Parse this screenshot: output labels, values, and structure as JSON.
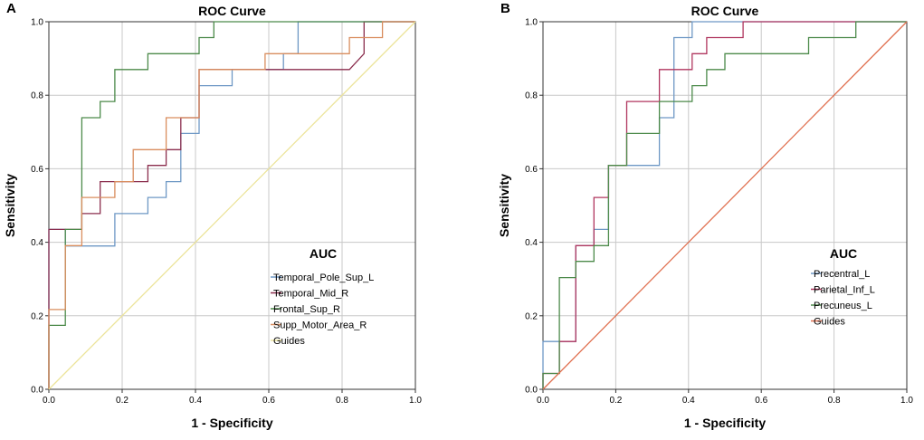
{
  "chart_data": [
    {
      "panel": "A",
      "type": "line",
      "title": "ROC Curve",
      "xlabel": "1 - Specificity",
      "ylabel": "Sensitivity",
      "xlim": [
        0,
        1
      ],
      "ylim": [
        0,
        1
      ],
      "x_ticks": [
        "0.0",
        "0.2",
        "0.4",
        "0.6",
        "0.8",
        "1.0"
      ],
      "y_ticks": [
        "0.0",
        "0.2",
        "0.4",
        "0.6",
        "0.8",
        "1.0"
      ],
      "grid": true,
      "legend_title": "AUC",
      "legend_position": "bottom-right",
      "series": [
        {
          "name": "Temporal_Pole_Sup_L",
          "color": "#6e98c5",
          "x": [
            0,
            0,
            0.045,
            0.045,
            0.18,
            0.18,
            0.27,
            0.27,
            0.32,
            0.32,
            0.36,
            0.36,
            0.41,
            0.41,
            0.41,
            0.5,
            0.5,
            0.64,
            0.64,
            0.68,
            0.68,
            1.0
          ],
          "y": [
            0,
            0.435,
            0.435,
            0.39,
            0.39,
            0.478,
            0.478,
            0.522,
            0.522,
            0.565,
            0.565,
            0.696,
            0.696,
            0.739,
            0.826,
            0.826,
            0.87,
            0.87,
            0.913,
            0.913,
            1.0,
            1.0
          ]
        },
        {
          "name": "Temporal_Mid_R",
          "color": "#8b2e4e",
          "x": [
            0,
            0,
            0.09,
            0.09,
            0.14,
            0.14,
            0.27,
            0.27,
            0.32,
            0.32,
            0.36,
            0.36,
            0.41,
            0.41,
            0.77,
            0.77,
            0.82,
            0.82,
            0.86,
            0.86,
            1.0
          ],
          "y": [
            0,
            0.435,
            0.435,
            0.478,
            0.478,
            0.565,
            0.565,
            0.609,
            0.609,
            0.652,
            0.652,
            0.739,
            0.739,
            0.87,
            0.87,
            0.87,
            0.87,
            0.87,
            0.913,
            1.0,
            1.0
          ]
        },
        {
          "name": "Frontal_Sup_R",
          "color": "#4c8a4a",
          "x": [
            0,
            0,
            0.045,
            0.045,
            0.09,
            0.09,
            0.14,
            0.14,
            0.18,
            0.18,
            0.27,
            0.27,
            0.41,
            0.41,
            0.45,
            0.45,
            1.0
          ],
          "y": [
            0,
            0.174,
            0.174,
            0.435,
            0.435,
            0.739,
            0.739,
            0.783,
            0.783,
            0.87,
            0.87,
            0.913,
            0.913,
            0.957,
            0.957,
            1.0,
            1.0
          ]
        },
        {
          "name": "Supp_Motor_Area_R",
          "color": "#d98d5e",
          "x": [
            0,
            0,
            0.045,
            0.045,
            0.09,
            0.09,
            0.18,
            0.18,
            0.23,
            0.23,
            0.32,
            0.32,
            0.41,
            0.41,
            0.59,
            0.59,
            0.73,
            0.73,
            0.82,
            0.82,
            0.91,
            0.91,
            1.0
          ],
          "y": [
            0,
            0.217,
            0.217,
            0.391,
            0.391,
            0.522,
            0.522,
            0.565,
            0.565,
            0.652,
            0.652,
            0.739,
            0.739,
            0.87,
            0.87,
            0.913,
            0.913,
            0.913,
            0.913,
            0.957,
            0.957,
            1.0,
            1.0
          ]
        },
        {
          "name": "Guides",
          "color": "#ece49a",
          "x": [
            0,
            1
          ],
          "y": [
            0,
            1
          ]
        }
      ]
    },
    {
      "panel": "B",
      "type": "line",
      "title": "ROC Curve",
      "xlabel": "1 - Specificity",
      "ylabel": "Sensitivity",
      "xlim": [
        0,
        1
      ],
      "ylim": [
        0,
        1
      ],
      "x_ticks": [
        "0.0",
        "0.2",
        "0.4",
        "0.6",
        "0.8",
        "1.0"
      ],
      "y_ticks": [
        "0.0",
        "0.2",
        "0.4",
        "0.6",
        "0.8",
        "1.0"
      ],
      "grid": true,
      "legend_title": "AUC",
      "legend_position": "bottom-right",
      "series": [
        {
          "name": "Precentral_L",
          "color": "#6e98c5",
          "x": [
            0,
            0,
            0.045,
            0.045,
            0.09,
            0.09,
            0.14,
            0.14,
            0.18,
            0.18,
            0.32,
            0.32,
            0.36,
            0.36,
            0.41,
            0.41,
            1.0
          ],
          "y": [
            0,
            0.13,
            0.13,
            0.13,
            0.13,
            0.391,
            0.391,
            0.435,
            0.435,
            0.609,
            0.609,
            0.739,
            0.739,
            0.957,
            0.957,
            1.0,
            1.0
          ]
        },
        {
          "name": "Parietal_Inf_L",
          "color": "#b0365f",
          "x": [
            0,
            0,
            0.045,
            0.045,
            0.09,
            0.09,
            0.14,
            0.14,
            0.18,
            0.18,
            0.23,
            0.23,
            0.32,
            0.32,
            0.41,
            0.41,
            0.45,
            0.45,
            0.55,
            0.55,
            1.0
          ],
          "y": [
            0,
            0.043,
            0.043,
            0.13,
            0.13,
            0.391,
            0.391,
            0.522,
            0.522,
            0.609,
            0.609,
            0.783,
            0.783,
            0.87,
            0.87,
            0.913,
            0.913,
            0.957,
            0.957,
            1.0,
            1.0
          ]
        },
        {
          "name": "Precuneus_L",
          "color": "#4c8a4a",
          "x": [
            0,
            0,
            0.045,
            0.045,
            0.09,
            0.09,
            0.14,
            0.14,
            0.18,
            0.18,
            0.23,
            0.23,
            0.32,
            0.32,
            0.41,
            0.41,
            0.45,
            0.45,
            0.5,
            0.5,
            0.73,
            0.73,
            0.86,
            0.86,
            1.0
          ],
          "y": [
            0,
            0.043,
            0.043,
            0.304,
            0.304,
            0.348,
            0.348,
            0.391,
            0.391,
            0.609,
            0.609,
            0.696,
            0.696,
            0.783,
            0.783,
            0.826,
            0.826,
            0.87,
            0.87,
            0.913,
            0.913,
            0.957,
            0.957,
            1.0,
            1.0
          ]
        },
        {
          "name": "Guides",
          "color": "#e07050",
          "x": [
            0,
            1
          ],
          "y": [
            0,
            1
          ]
        }
      ]
    }
  ]
}
